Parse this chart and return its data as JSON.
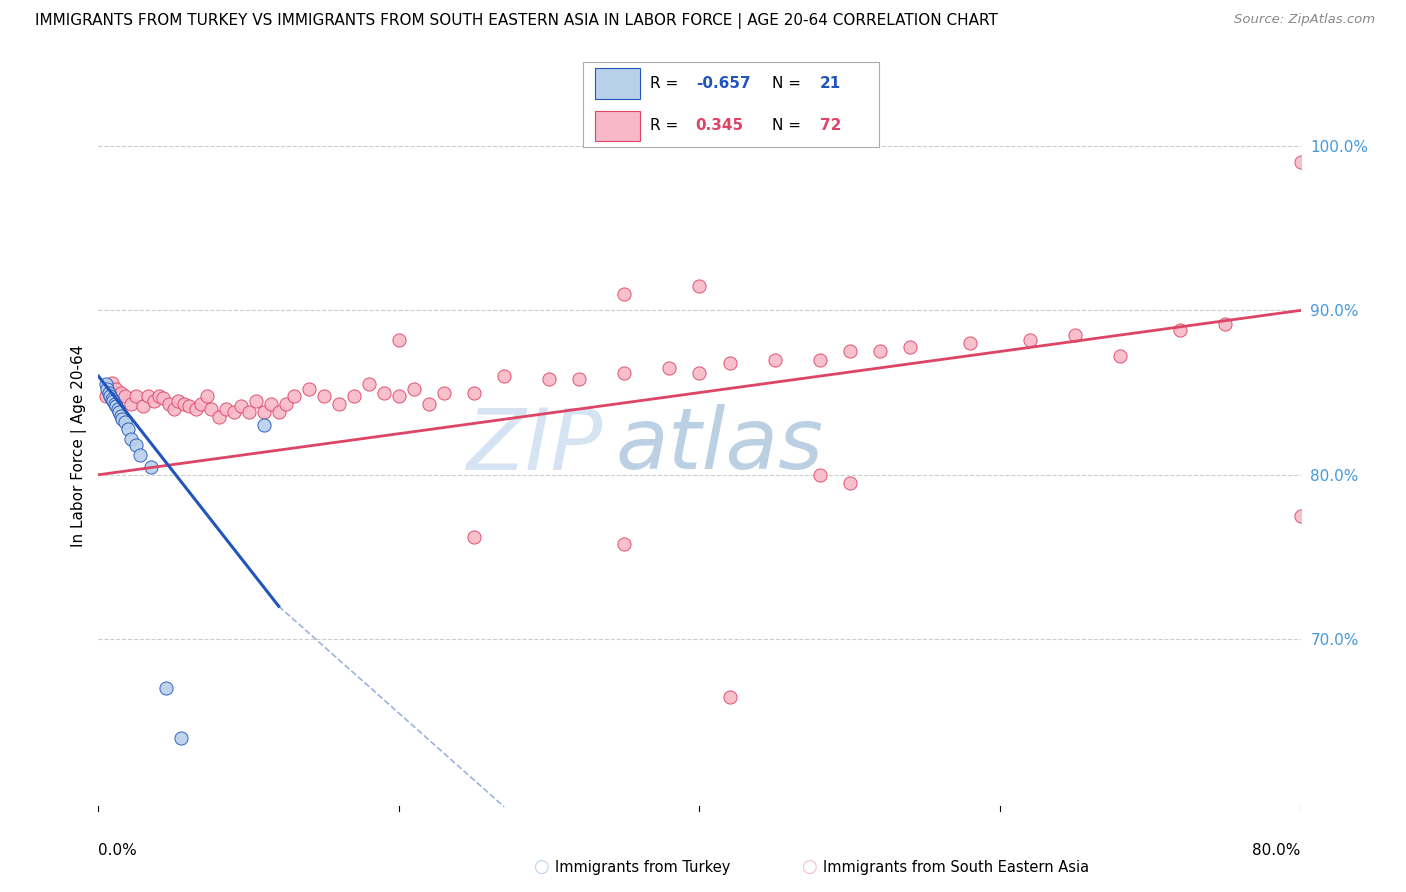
{
  "title": "IMMIGRANTS FROM TURKEY VS IMMIGRANTS FROM SOUTH EASTERN ASIA IN LABOR FORCE | AGE 20-64 CORRELATION CHART",
  "source": "Source: ZipAtlas.com",
  "ylabel": "In Labor Force | Age 20-64",
  "r_turkey": -0.657,
  "n_turkey": 21,
  "r_sea": 0.345,
  "n_sea": 72,
  "color_turkey": "#b8d0ea",
  "color_sea": "#f8b8c8",
  "line_color_turkey": "#2255bb",
  "line_color_sea": "#dd4466",
  "watermark_zip": "ZIP",
  "watermark_atlas": "atlas",
  "xlim": [
    0.0,
    0.8
  ],
  "ylim": [
    0.595,
    1.04
  ],
  "right_yticks": [
    1.0,
    0.9,
    0.8,
    0.7
  ],
  "right_yticklabels": [
    "100.0%",
    "90.0%",
    "80.0%",
    "70.0%"
  ],
  "turkey_x": [
    0.005,
    0.006,
    0.007,
    0.008,
    0.009,
    0.01,
    0.011,
    0.012,
    0.013,
    0.014,
    0.015,
    0.016,
    0.018,
    0.02,
    0.022,
    0.025,
    0.028,
    0.035,
    0.045,
    0.055,
    0.11
  ],
  "turkey_y": [
    0.855,
    0.852,
    0.85,
    0.848,
    0.846,
    0.845,
    0.843,
    0.842,
    0.84,
    0.838,
    0.836,
    0.834,
    0.832,
    0.828,
    0.822,
    0.818,
    0.812,
    0.805,
    0.67,
    0.64,
    0.83
  ],
  "sea_x": [
    0.005,
    0.007,
    0.009,
    0.012,
    0.015,
    0.018,
    0.022,
    0.025,
    0.03,
    0.033,
    0.037,
    0.04,
    0.043,
    0.047,
    0.05,
    0.053,
    0.057,
    0.06,
    0.065,
    0.068,
    0.072,
    0.075,
    0.08,
    0.085,
    0.09,
    0.095,
    0.1,
    0.105,
    0.11,
    0.115,
    0.12,
    0.125,
    0.13,
    0.14,
    0.15,
    0.16,
    0.17,
    0.18,
    0.19,
    0.2,
    0.21,
    0.22,
    0.23,
    0.25,
    0.27,
    0.3,
    0.32,
    0.35,
    0.38,
    0.4,
    0.42,
    0.45,
    0.48,
    0.5,
    0.52,
    0.54,
    0.58,
    0.62,
    0.65,
    0.68,
    0.72,
    0.75,
    0.8,
    0.35,
    0.4,
    0.2,
    0.35,
    0.42,
    0.25,
    0.48,
    0.5,
    0.8
  ],
  "sea_y": [
    0.848,
    0.852,
    0.856,
    0.852,
    0.85,
    0.848,
    0.843,
    0.848,
    0.842,
    0.848,
    0.845,
    0.848,
    0.847,
    0.843,
    0.84,
    0.845,
    0.843,
    0.842,
    0.84,
    0.843,
    0.848,
    0.84,
    0.835,
    0.84,
    0.838,
    0.842,
    0.838,
    0.845,
    0.838,
    0.843,
    0.838,
    0.843,
    0.848,
    0.852,
    0.848,
    0.843,
    0.848,
    0.855,
    0.85,
    0.848,
    0.852,
    0.843,
    0.85,
    0.85,
    0.86,
    0.858,
    0.858,
    0.862,
    0.865,
    0.862,
    0.868,
    0.87,
    0.87,
    0.875,
    0.875,
    0.878,
    0.88,
    0.882,
    0.885,
    0.872,
    0.888,
    0.892,
    0.99,
    0.91,
    0.915,
    0.882,
    0.758,
    0.665,
    0.762,
    0.8,
    0.795,
    0.775
  ],
  "sea_trend_x0": 0.0,
  "sea_trend_x1": 0.8,
  "sea_trend_y0": 0.8,
  "sea_trend_y1": 0.9,
  "turkey_trend_solid_x0": 0.0,
  "turkey_trend_solid_x1": 0.12,
  "turkey_trend_solid_y0": 0.86,
  "turkey_trend_solid_y1": 0.72,
  "turkey_trend_dash_x0": 0.12,
  "turkey_trend_dash_x1": 0.27,
  "turkey_trend_dash_y0": 0.72,
  "turkey_trend_dash_y1": 0.598
}
